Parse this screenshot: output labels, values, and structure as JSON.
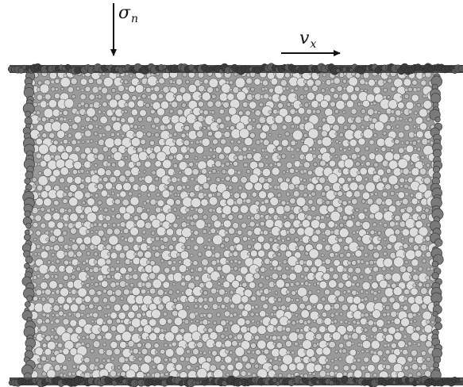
{
  "figure": {
    "labels": {
      "normal_stress": {
        "symbol": "σ",
        "subscript": "n"
      },
      "shear_velocity": {
        "symbol": "v",
        "subscript": "x"
      }
    },
    "colors": {
      "background": "#ffffff",
      "wall_particle": "#3c3c3c",
      "large_grain": "#dddddd",
      "grain_outline": "#5a5a5a",
      "pore_fill": "#9a9a9a",
      "arrow": "#111111"
    },
    "icons": {
      "normal_load_arrow": "arrow-down-icon",
      "shear_velocity_arrow": "arrow-right-icon"
    }
  }
}
